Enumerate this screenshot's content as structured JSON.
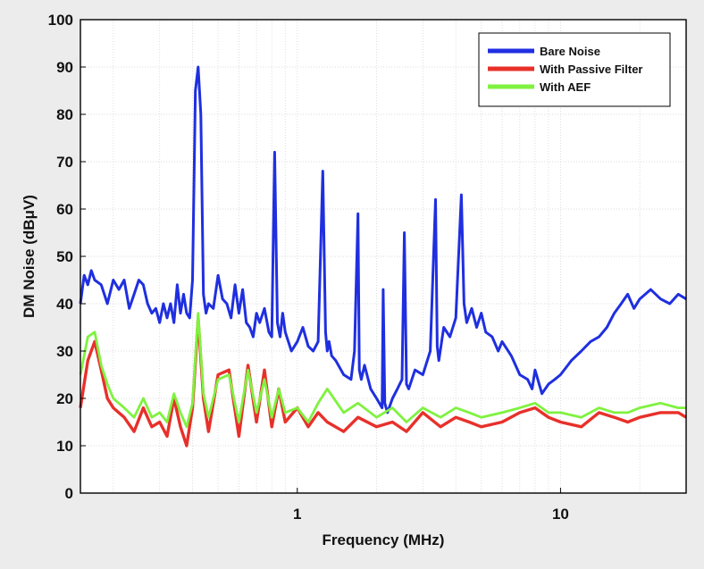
{
  "chart_data": {
    "type": "line",
    "title": "",
    "xlabel": "Frequency (MHz)",
    "ylabel": "DM Noise (dBμV)",
    "xscale": "log",
    "xlim": [
      0.15,
      30
    ],
    "ylim": [
      0,
      100
    ],
    "x_ticks": [
      {
        "value": 1,
        "label": "1"
      },
      {
        "value": 10,
        "label": "10"
      }
    ],
    "y_ticks": [
      {
        "value": 0,
        "label": "0"
      },
      {
        "value": 10,
        "label": "10"
      },
      {
        "value": 20,
        "label": "20"
      },
      {
        "value": 30,
        "label": "30"
      },
      {
        "value": 40,
        "label": "40"
      },
      {
        "value": 50,
        "label": "50"
      },
      {
        "value": 60,
        "label": "60"
      },
      {
        "value": 70,
        "label": "70"
      },
      {
        "value": 80,
        "label": "80"
      },
      {
        "value": 90,
        "label": "90"
      },
      {
        "value": 100,
        "label": "100"
      }
    ],
    "grid": true,
    "legend_position": "top-right",
    "series": [
      {
        "name": "Bare Noise",
        "color": "#1f2fe0",
        "x": [
          0.15,
          0.155,
          0.16,
          0.165,
          0.17,
          0.18,
          0.19,
          0.2,
          0.21,
          0.22,
          0.23,
          0.24,
          0.25,
          0.26,
          0.27,
          0.28,
          0.29,
          0.3,
          0.31,
          0.32,
          0.33,
          0.34,
          0.35,
          0.36,
          0.37,
          0.38,
          0.39,
          0.4,
          0.41,
          0.42,
          0.43,
          0.44,
          0.45,
          0.46,
          0.48,
          0.5,
          0.52,
          0.54,
          0.56,
          0.58,
          0.6,
          0.62,
          0.64,
          0.66,
          0.68,
          0.7,
          0.72,
          0.75,
          0.78,
          0.8,
          0.82,
          0.84,
          0.86,
          0.88,
          0.9,
          0.95,
          1.0,
          1.05,
          1.1,
          1.15,
          1.2,
          1.25,
          1.28,
          1.3,
          1.32,
          1.35,
          1.4,
          1.5,
          1.6,
          1.65,
          1.7,
          1.72,
          1.75,
          1.8,
          1.9,
          2.0,
          2.1,
          2.12,
          2.15,
          2.2,
          2.3,
          2.4,
          2.5,
          2.55,
          2.6,
          2.65,
          2.8,
          3.0,
          3.2,
          3.35,
          3.4,
          3.45,
          3.6,
          3.8,
          4.0,
          4.2,
          4.3,
          4.4,
          4.6,
          4.8,
          5.0,
          5.2,
          5.5,
          5.8,
          6.0,
          6.5,
          7.0,
          7.5,
          7.8,
          8.0,
          8.5,
          9.0,
          9.5,
          10,
          11,
          12,
          13,
          14,
          15,
          16,
          17,
          18,
          19,
          20,
          22,
          24,
          26,
          28,
          30
        ],
        "values": [
          40,
          46,
          44,
          47,
          45,
          44,
          40,
          45,
          43,
          45,
          39,
          42,
          45,
          44,
          40,
          38,
          39,
          36,
          40,
          37,
          40,
          36,
          44,
          38,
          42,
          38,
          37,
          45,
          85,
          90,
          80,
          42,
          38,
          40,
          39,
          46,
          41,
          40,
          37,
          44,
          38,
          43,
          36,
          35,
          33,
          38,
          36,
          39,
          34,
          33,
          72,
          36,
          33,
          38,
          34,
          30,
          32,
          35,
          31,
          30,
          32,
          68,
          34,
          30,
          32,
          29,
          28,
          25,
          24,
          30,
          59,
          26,
          24,
          27,
          22,
          20,
          18,
          43,
          19,
          17,
          20,
          22,
          24,
          55,
          23,
          22,
          26,
          25,
          30,
          62,
          31,
          28,
          35,
          33,
          37,
          63,
          40,
          36,
          39,
          35,
          38,
          34,
          33,
          30,
          32,
          29,
          25,
          24,
          22,
          26,
          21,
          23,
          24,
          25,
          28,
          30,
          32,
          33,
          35,
          38,
          40,
          42,
          39,
          41,
          43,
          41,
          40,
          42,
          41
        ]
      },
      {
        "name": "With Passive Filter",
        "color": "#e8302a",
        "x": [
          0.15,
          0.16,
          0.17,
          0.18,
          0.19,
          0.2,
          0.22,
          0.24,
          0.26,
          0.28,
          0.3,
          0.32,
          0.34,
          0.36,
          0.38,
          0.4,
          0.42,
          0.44,
          0.46,
          0.5,
          0.55,
          0.6,
          0.65,
          0.7,
          0.75,
          0.8,
          0.85,
          0.9,
          1.0,
          1.1,
          1.2,
          1.3,
          1.5,
          1.7,
          2.0,
          2.3,
          2.6,
          3.0,
          3.5,
          4.0,
          4.5,
          5.0,
          6.0,
          7.0,
          8.0,
          9.0,
          10,
          12,
          14,
          16,
          18,
          20,
          24,
          28,
          30
        ],
        "values": [
          18,
          28,
          32,
          26,
          20,
          18,
          16,
          13,
          18,
          14,
          15,
          12,
          20,
          14,
          10,
          18,
          37,
          20,
          13,
          25,
          26,
          12,
          27,
          15,
          26,
          14,
          22,
          15,
          18,
          14,
          17,
          15,
          13,
          16,
          14,
          15,
          13,
          17,
          14,
          16,
          15,
          14,
          15,
          17,
          18,
          16,
          15,
          14,
          17,
          16,
          15,
          16,
          17,
          17,
          16
        ]
      },
      {
        "name": "With AEF",
        "color": "#7ff23f",
        "x": [
          0.15,
          0.16,
          0.17,
          0.18,
          0.19,
          0.2,
          0.22,
          0.24,
          0.26,
          0.28,
          0.3,
          0.32,
          0.34,
          0.36,
          0.38,
          0.4,
          0.42,
          0.44,
          0.46,
          0.5,
          0.55,
          0.6,
          0.65,
          0.7,
          0.75,
          0.8,
          0.85,
          0.9,
          1.0,
          1.1,
          1.2,
          1.3,
          1.5,
          1.7,
          2.0,
          2.3,
          2.6,
          3.0,
          3.5,
          4.0,
          4.5,
          5.0,
          6.0,
          7.0,
          8.0,
          9.0,
          10,
          12,
          14,
          16,
          18,
          20,
          24,
          28,
          30
        ],
        "values": [
          25,
          33,
          34,
          27,
          23,
          20,
          18,
          16,
          20,
          16,
          17,
          15,
          21,
          17,
          14,
          19,
          38,
          21,
          16,
          24,
          25,
          15,
          26,
          17,
          24,
          16,
          22,
          17,
          18,
          15,
          19,
          22,
          17,
          19,
          16,
          18,
          15,
          18,
          16,
          18,
          17,
          16,
          17,
          18,
          19,
          17,
          17,
          16,
          18,
          17,
          17,
          18,
          19,
          18,
          18
        ]
      }
    ]
  }
}
